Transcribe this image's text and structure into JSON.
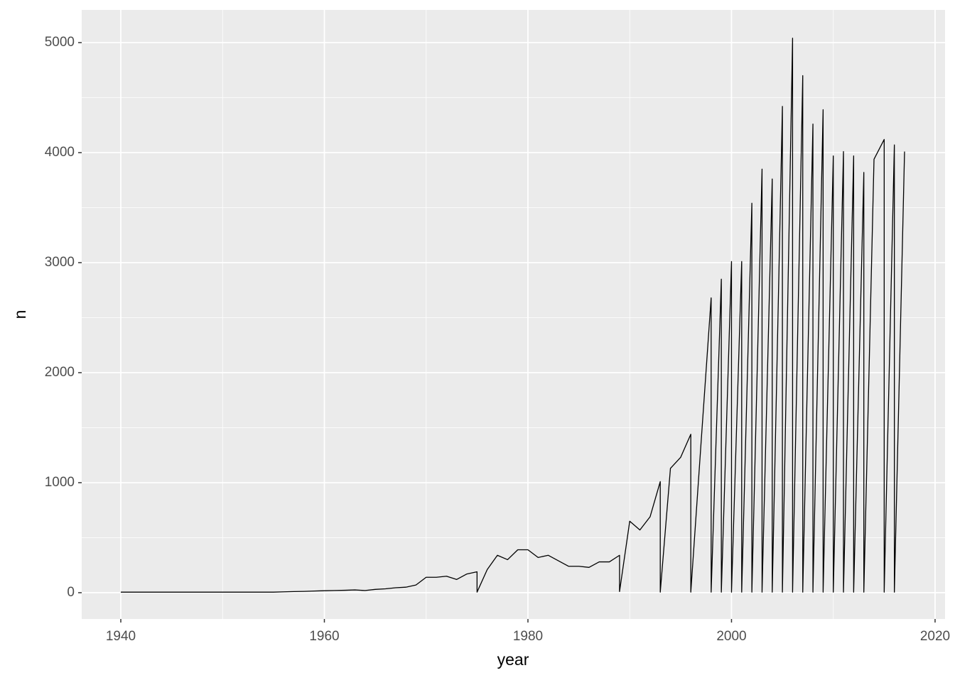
{
  "chart_data": {
    "type": "line",
    "x_label": "year",
    "y_label": "n",
    "x": [
      1940,
      1941,
      1942,
      1943,
      1944,
      1945,
      1946,
      1947,
      1948,
      1949,
      1950,
      1951,
      1952,
      1953,
      1954,
      1955,
      1956,
      1957,
      1958,
      1959,
      1960,
      1961,
      1962,
      1963,
      1964,
      1965,
      1966,
      1967,
      1968,
      1969,
      1970,
      1971,
      1972,
      1973,
      1974,
      1975,
      1975,
      1976,
      1977,
      1978,
      1979,
      1980,
      1981,
      1982,
      1983,
      1984,
      1985,
      1986,
      1987,
      1988,
      1989,
      1989,
      1990,
      1991,
      1992,
      1993,
      1993,
      1994,
      1995,
      1996,
      1996,
      1997,
      1998,
      1998,
      1999,
      1999,
      2000,
      2000,
      2001,
      2001,
      2002,
      2002,
      2003,
      2003,
      2004,
      2004,
      2005,
      2005,
      2006,
      2006,
      2007,
      2007,
      2008,
      2008,
      2009,
      2009,
      2010,
      2010,
      2011,
      2011,
      2012,
      2012,
      2013,
      2013,
      2014,
      2015,
      2015,
      2016,
      2016,
      2017
    ],
    "values": [
      5,
      5,
      5,
      5,
      5,
      5,
      5,
      5,
      5,
      5,
      5,
      5,
      5,
      5,
      5,
      5,
      8,
      10,
      12,
      15,
      18,
      20,
      22,
      25,
      20,
      30,
      35,
      45,
      50,
      70,
      140,
      140,
      150,
      120,
      170,
      190,
      5,
      210,
      340,
      300,
      390,
      390,
      320,
      340,
      290,
      240,
      240,
      230,
      280,
      280,
      340,
      10,
      650,
      570,
      690,
      1010,
      5,
      1130,
      1230,
      1440,
      5,
      1350,
      2680,
      5,
      2850,
      5,
      3010,
      5,
      3010,
      5,
      3540,
      5,
      3850,
      5,
      3760,
      5,
      4420,
      5,
      5040,
      5,
      4700,
      5,
      4260,
      5,
      4390,
      5,
      3970,
      5,
      4010,
      5,
      3970,
      5,
      3820,
      5,
      3940,
      4120,
      5,
      4070,
      5,
      4010
    ],
    "color": "#000000",
    "xlim": [
      1936.16,
      2020.98
    ],
    "ylim": [
      -239,
      5297
    ],
    "xticks": [
      1940,
      1960,
      1980,
      2000,
      2020
    ],
    "yticks": [
      0,
      1000,
      2000,
      3000,
      4000,
      5000
    ],
    "grid": true
  }
}
